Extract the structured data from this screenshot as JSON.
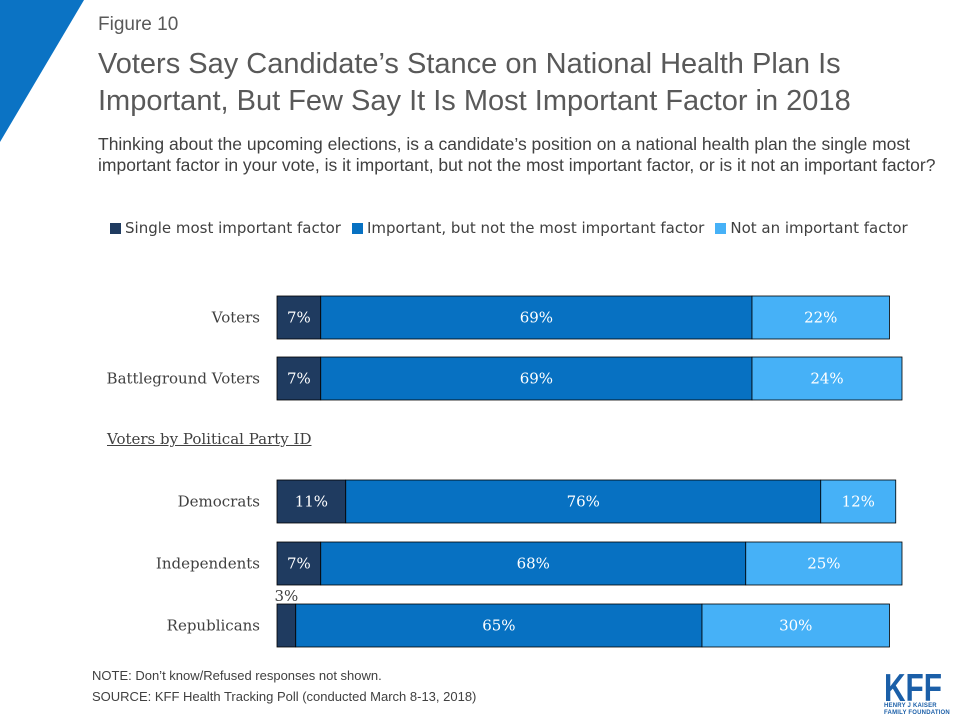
{
  "figure_label": "Figure 10",
  "title": "Voters Say Candidate’s Stance on National Health Plan Is Important, But Few Say It Is Most Important Factor in 2018",
  "subtitle": "Thinking about the upcoming elections, is a candidate’s position on a national health plan the single most important factor in your vote, is it important, but not the most important factor, or is it not an important factor?",
  "group_heading": "Voters by Political Party ID",
  "note": "NOTE: Don’t know/Refused responses not shown.",
  "source": "SOURCE: KFF Health Tracking Poll (conducted March 8-13, 2018)",
  "logo": {
    "mark": "KFF",
    "line1": "HENRY J KAISER",
    "line2": "FAMILY FOUNDATION"
  },
  "colors": {
    "single": "#1f3b60",
    "important": "#0771c2",
    "not_important": "#46b1f7",
    "corner": "#0b73c4"
  },
  "chart_data": {
    "type": "bar",
    "orientation": "horizontal",
    "stacked": true,
    "categories": [
      "Voters",
      "Battleground Voters",
      "Democrats",
      "Independents",
      "Republicans"
    ],
    "series": [
      {
        "name": "Single most important factor",
        "values": [
          7,
          7,
          11,
          7,
          3
        ],
        "labels": [
          "7%",
          "7%",
          "11%",
          "7%",
          "3%"
        ]
      },
      {
        "name": "Important, but not the most important factor",
        "values": [
          69,
          69,
          76,
          68,
          65
        ],
        "labels": [
          "69%",
          "69%",
          "76%",
          "68%",
          "65%"
        ]
      },
      {
        "name": "Not an important factor",
        "values": [
          22,
          24,
          12,
          25,
          30
        ],
        "labels": [
          "22%",
          "24%",
          "12%",
          "25%",
          "30%"
        ]
      }
    ],
    "xlim": [
      0,
      100
    ],
    "legend_position": "top"
  }
}
